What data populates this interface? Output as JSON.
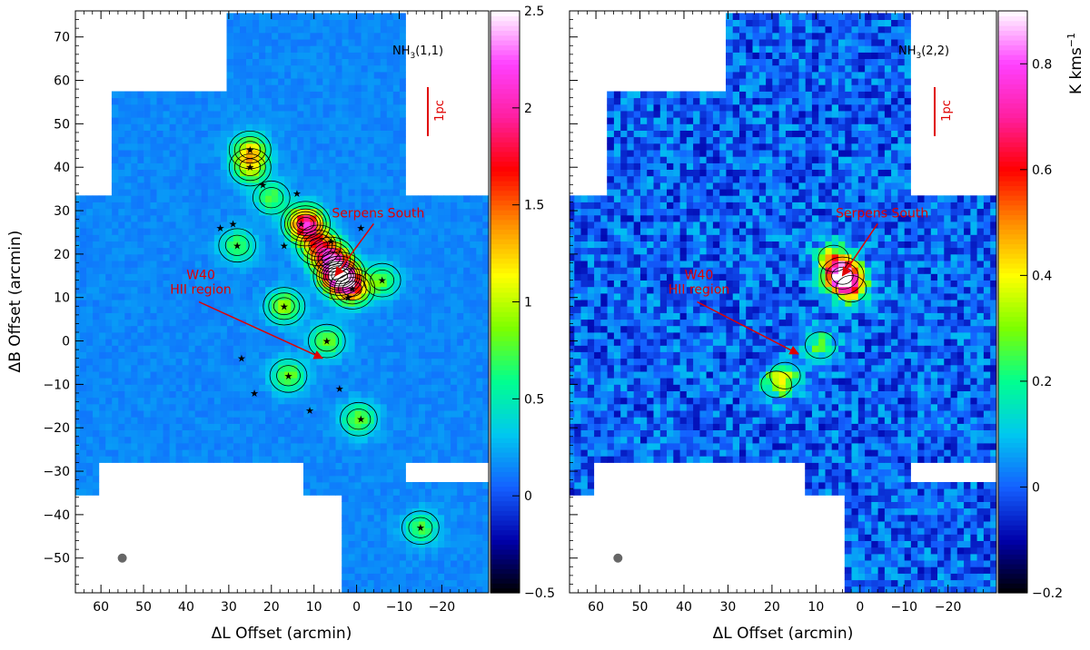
{
  "figure": {
    "left_panel_label": "NH",
    "left_panel_label_sub": "3",
    "left_panel_label_tail": "(1,1)",
    "right_panel_label": "NH",
    "right_panel_label_sub": "3",
    "right_panel_label_tail": "(2,2)",
    "scale_bar_label": "1pc",
    "ylabel": "ΔB Offset (arcmin)",
    "xlabel": "ΔL Offset (arcmin)",
    "colorbar_label": "K kms",
    "colorbar_label_exp": "−1",
    "annotation_serpens": "Serpens South",
    "annotation_w40_line1": "W40",
    "annotation_w40_line2": "HII region"
  },
  "chart_data": [
    {
      "type": "heatmap",
      "title": "NH3(1,1)",
      "xlabel": "ΔL Offset (arcmin)",
      "ylabel": "ΔB Offset (arcmin)",
      "xlim": [
        66,
        -31
      ],
      "ylim": [
        -58,
        76
      ],
      "x_ticks": [
        60,
        50,
        40,
        30,
        20,
        10,
        0,
        -10,
        -20
      ],
      "x_tick_labels": [
        "60",
        "50",
        "40",
        "30",
        "20",
        "10",
        "0",
        "−10",
        "−20"
      ],
      "y_ticks": [
        -50,
        -40,
        -30,
        -20,
        -10,
        0,
        10,
        20,
        30,
        40,
        50,
        60,
        70
      ],
      "y_tick_labels": [
        "−50",
        "−40",
        "−30",
        "−20",
        "−10",
        "0",
        "10",
        "20",
        "30",
        "40",
        "50",
        "60",
        "70"
      ],
      "colorbar_range": [
        -0.5,
        2.5
      ],
      "colorbar_ticks": [
        -0.5,
        0,
        0.5,
        1,
        1.5,
        2,
        2.5
      ],
      "colorbar_tick_labels": [
        "−0.5",
        "0",
        "0.5",
        "1",
        "1.5",
        "2",
        "2.5"
      ],
      "colormap_stops": [
        "#000000",
        "#0000aa",
        "#1460ff",
        "#00c8f0",
        "#00ff90",
        "#7cff00",
        "#ffff00",
        "#ff8c00",
        "#ff0000",
        "#ff1fa0",
        "#ff40ff",
        "#ffffff"
      ],
      "background_level": 0.15,
      "peaks": [
        {
          "l": 4,
          "b": 15,
          "amp": 2.4
        },
        {
          "l": 12,
          "b": 27,
          "amp": 1.9
        },
        {
          "l": 6,
          "b": 19,
          "amp": 1.4
        },
        {
          "l": 1,
          "b": 12,
          "amp": 1.2
        },
        {
          "l": 9,
          "b": 22,
          "amp": 1.1
        },
        {
          "l": 25,
          "b": 44,
          "amp": 0.9
        },
        {
          "l": 25,
          "b": 40,
          "amp": 0.8
        },
        {
          "l": 17,
          "b": 8,
          "amp": 0.8
        },
        {
          "l": 7,
          "b": 0,
          "amp": 0.7
        },
        {
          "l": 16,
          "b": -8,
          "amp": 0.7
        },
        {
          "l": -0.5,
          "b": -18,
          "amp": 0.7
        },
        {
          "l": -6,
          "b": 14,
          "amp": 0.6
        },
        {
          "l": 28,
          "b": 22,
          "amp": 0.6
        },
        {
          "l": 20,
          "b": 33,
          "amp": 0.6
        },
        {
          "l": -15,
          "b": -43,
          "amp": 0.6
        }
      ],
      "stars": [
        [
          25,
          44
        ],
        [
          25,
          40
        ],
        [
          29,
          27
        ],
        [
          32,
          26
        ],
        [
          28,
          22
        ],
        [
          22,
          36
        ],
        [
          14,
          34
        ],
        [
          17,
          22
        ],
        [
          13,
          27
        ],
        [
          6,
          23
        ],
        [
          1,
          12
        ],
        [
          -6,
          14
        ],
        [
          17,
          8
        ],
        [
          7,
          0
        ],
        [
          16,
          -8
        ],
        [
          27,
          -4
        ],
        [
          4,
          -11
        ],
        [
          -1,
          -18
        ],
        [
          11,
          -16
        ],
        [
          -15,
          -43
        ],
        [
          24,
          -12
        ],
        [
          -1,
          26
        ],
        [
          2,
          10
        ]
      ],
      "beam": {
        "l": 55,
        "b": -50
      },
      "annotations": [
        {
          "text": "Serpens South",
          "arrow_from": [
            -4,
            27
          ],
          "arrow_to": [
            5,
            15
          ]
        },
        {
          "text": "W40 HII region",
          "arrow_from": [
            37,
            9
          ],
          "arrow_to": [
            8,
            -4
          ]
        }
      ]
    },
    {
      "type": "heatmap",
      "title": "NH3(2,2)",
      "xlabel": "ΔL Offset (arcmin)",
      "ylabel": "ΔB Offset (arcmin)",
      "xlim": [
        66,
        -31
      ],
      "ylim": [
        -58,
        76
      ],
      "x_ticks": [
        60,
        50,
        40,
        30,
        20,
        10,
        0,
        -10,
        -20
      ],
      "x_tick_labels": [
        "60",
        "50",
        "40",
        "30",
        "20",
        "10",
        "0",
        "−10",
        "−20"
      ],
      "colorbar_range": [
        -0.2,
        0.9
      ],
      "colorbar_ticks": [
        -0.2,
        0,
        0.2,
        0.4,
        0.6,
        0.8
      ],
      "colorbar_tick_labels": [
        "−0.2",
        "0",
        "0.2",
        "0.4",
        "0.6",
        "0.8"
      ],
      "colorbar_label": "K kms−1",
      "colormap_stops": [
        "#000000",
        "#0000aa",
        "#1460ff",
        "#00c8f0",
        "#00ff90",
        "#7cff00",
        "#ffff00",
        "#ff8c00",
        "#ff0000",
        "#ff1fa0",
        "#ff40ff",
        "#ffffff"
      ],
      "background_level": 0.0,
      "peaks": [
        {
          "l": 4,
          "b": 15,
          "amp": 0.85
        },
        {
          "l": 2,
          "b": 12,
          "amp": 0.35
        },
        {
          "l": 6,
          "b": 19,
          "amp": 0.35
        },
        {
          "l": 9,
          "b": -1,
          "amp": 0.25
        },
        {
          "l": 17,
          "b": -8,
          "amp": 0.25
        },
        {
          "l": 19,
          "b": -10,
          "amp": 0.2
        }
      ],
      "beam": {
        "l": 55,
        "b": -50
      },
      "annotations": [
        {
          "text": "Serpens South",
          "arrow_from": [
            -4,
            27
          ],
          "arrow_to": [
            4,
            15
          ]
        },
        {
          "text": "W40 HII region",
          "arrow_from": [
            37,
            9
          ],
          "arrow_to": [
            14,
            -3
          ]
        }
      ]
    }
  ]
}
